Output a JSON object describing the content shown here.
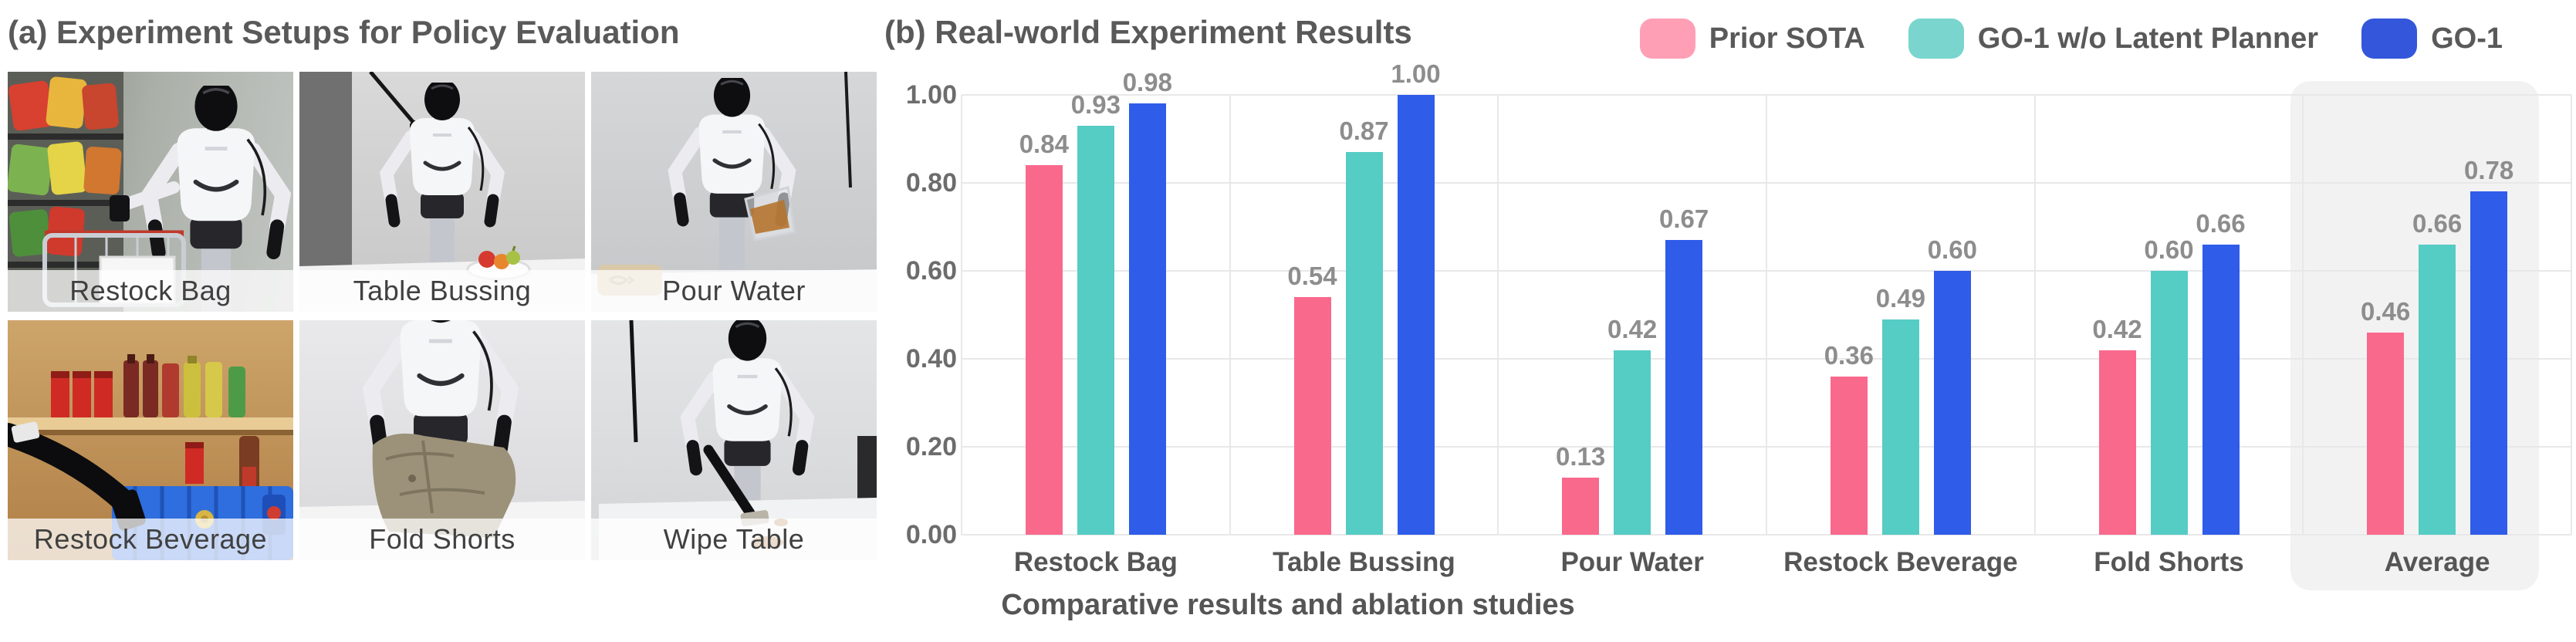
{
  "panel_a": {
    "title": "(a) Experiment Setups for Policy Evaluation",
    "setups": [
      {
        "label": "Restock Bag"
      },
      {
        "label": "Table Bussing"
      },
      {
        "label": "Pour Water"
      },
      {
        "label": "Restock Beverage"
      },
      {
        "label": "Fold Shorts"
      },
      {
        "label": "Wipe Table"
      }
    ]
  },
  "panel_b": {
    "title": "(b) Real-world Experiment Results",
    "caption": "Comparative results and ablation studies"
  },
  "chart_data": {
    "type": "bar",
    "title": "(b) Real-world Experiment Results",
    "categories": [
      "Restock Bag",
      "Table Bussing",
      "Pour Water",
      "Restock Beverage",
      "Fold Shorts",
      "Average"
    ],
    "series": [
      {
        "name": "Prior SOTA",
        "color": "#F9698C",
        "legend_color": "#FF9FB6",
        "values": [
          0.84,
          0.54,
          0.13,
          0.36,
          0.42,
          0.46
        ]
      },
      {
        "name": "GO-1 w/o Latent Planner",
        "color": "#55CCC4",
        "legend_color": "#79D5CD",
        "values": [
          0.93,
          0.87,
          0.42,
          0.49,
          0.6,
          0.66
        ]
      },
      {
        "name": "GO-1",
        "color": "#2F5CE8",
        "legend_color": "#3356DB",
        "values": [
          0.98,
          1.0,
          0.67,
          0.6,
          0.66,
          0.78
        ]
      }
    ],
    "ylim": [
      0,
      1.0
    ],
    "yticks": [
      "1.00",
      "0.80",
      "0.60",
      "0.40",
      "0.20",
      "0.00"
    ],
    "grid": true,
    "value_labels": true,
    "legend_position": "top-right",
    "highlighted_category": "Average",
    "grid_color": "#e8e8ea",
    "highlight_color": "#f2f2f3",
    "value_label_color": "#8d8d8d"
  }
}
